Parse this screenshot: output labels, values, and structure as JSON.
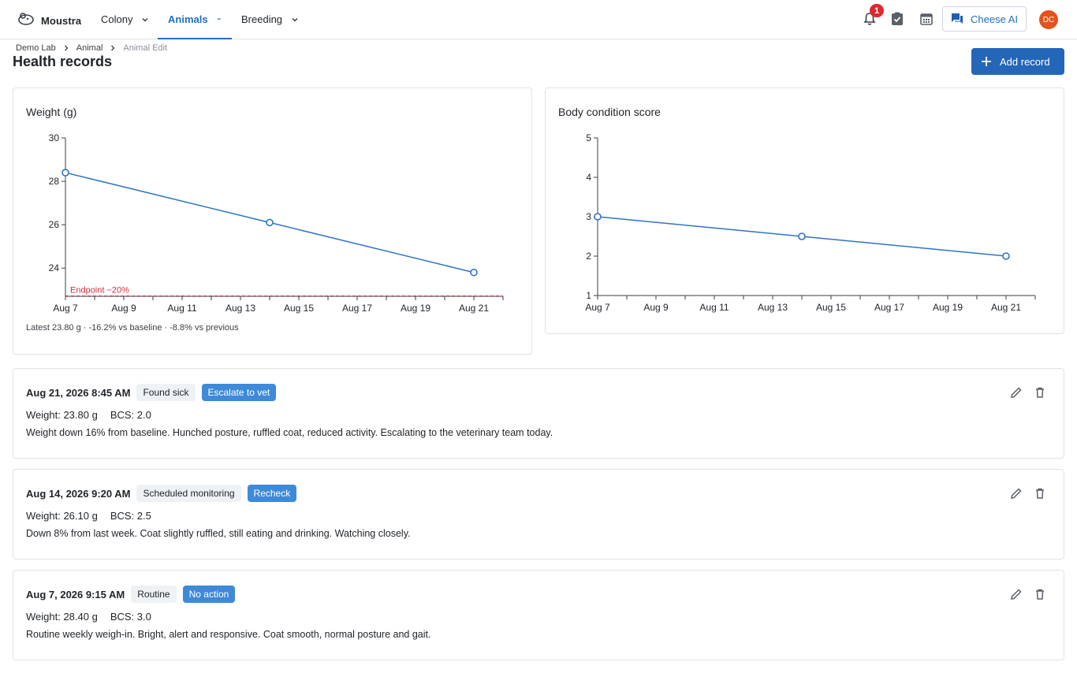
{
  "app": {
    "name": "Moustra"
  },
  "nav": {
    "items": [
      {
        "label": "Colony"
      },
      {
        "label": "Animals"
      },
      {
        "label": "Breeding"
      }
    ],
    "notifications_count": "1",
    "cheese_ai_label": "Cheese AI",
    "avatar_initials": "DC"
  },
  "breadcrumb": [
    "Demo Lab",
    "Animal",
    "Animal Edit"
  ],
  "page": {
    "title": "Health records",
    "add_button_label": "Add record"
  },
  "colors": {
    "accent": "#1f6fc0",
    "line": "#2f74c4",
    "endpoint": "#d4303c",
    "primary_button": "#2466b8",
    "action_tag": "#3e8ad8"
  },
  "weight_chart": {
    "title": "Weight (g)",
    "summary": "Latest 23.80 g · -16.2% vs baseline · -8.8% vs previous",
    "endpoint_label": "Endpoint −20%",
    "x_ticks": [
      "Aug 7",
      "Aug 9",
      "Aug 11",
      "Aug 13",
      "Aug 15",
      "Aug 17",
      "Aug 19",
      "Aug 21"
    ],
    "y_ticks": [
      "24",
      "26",
      "28",
      "30"
    ]
  },
  "bcs_chart": {
    "title": "Body condition score",
    "x_ticks": [
      "Aug 7",
      "Aug 9",
      "Aug 11",
      "Aug 13",
      "Aug 15",
      "Aug 17",
      "Aug 19",
      "Aug 21"
    ],
    "y_ticks": [
      "1",
      "2",
      "3",
      "4",
      "5"
    ]
  },
  "chart_data": [
    {
      "type": "line",
      "title": "Weight (g)",
      "x": [
        "2026-08-07",
        "2026-08-14",
        "2026-08-21"
      ],
      "series": [
        {
          "values": [
            28.4,
            26.1,
            23.8
          ]
        }
      ],
      "ylim": [
        22.7,
        30
      ],
      "xlim": [
        "2026-08-07",
        "2026-08-22"
      ],
      "reference_line": {
        "label": "Endpoint −20%",
        "value": 22.72
      }
    },
    {
      "type": "line",
      "title": "Body condition score",
      "x": [
        "2026-08-07",
        "2026-08-14",
        "2026-08-21"
      ],
      "series": [
        {
          "values": [
            3.0,
            2.5,
            2.0
          ]
        }
      ],
      "ylim": [
        1,
        5
      ],
      "xlim": [
        "2026-08-07",
        "2026-08-22"
      ]
    }
  ],
  "records": [
    {
      "date": "Aug 21, 2026 8:45 AM",
      "type": "Found sick",
      "action": "Escalate to vet",
      "weight": "Weight: 23.80 g",
      "bcs": "BCS: 2.0",
      "note": "Weight down 16% from baseline. Hunched posture, ruffled coat, reduced activity. Escalating to the veterinary team today."
    },
    {
      "date": "Aug 14, 2026 9:20 AM",
      "type": "Scheduled monitoring",
      "action": "Recheck",
      "weight": "Weight: 26.10 g",
      "bcs": "BCS: 2.5",
      "note": "Down 8% from last week. Coat slightly ruffled, still eating and drinking. Watching closely."
    },
    {
      "date": "Aug 7, 2026 9:15 AM",
      "type": "Routine",
      "action": "No action",
      "weight": "Weight: 28.40 g",
      "bcs": "BCS: 3.0",
      "note": "Routine weekly weigh-in. Bright, alert and responsive. Coat smooth, normal posture and gait."
    }
  ]
}
